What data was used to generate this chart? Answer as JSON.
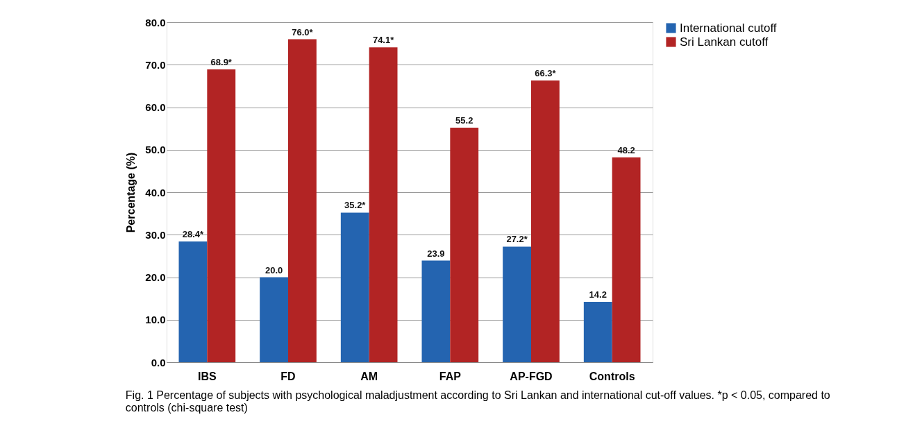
{
  "chart_data": {
    "type": "bar",
    "ylabel": "Percentage (%)",
    "categories": [
      "IBS",
      "FD",
      "AM",
      "FAP",
      "AP-FGD",
      "Controls"
    ],
    "series": [
      {
        "name": "International cutoff",
        "color": "#2464b0",
        "values": [
          28.4,
          20.0,
          35.2,
          23.9,
          27.2,
          14.2
        ],
        "value_labels": [
          "28.4*",
          "20.0",
          "35.2*",
          "23.9",
          "27.2*",
          "14.2"
        ]
      },
      {
        "name": "Sri Lankan cutoff",
        "color": "#b22424",
        "values": [
          68.9,
          76.0,
          74.1,
          55.2,
          66.3,
          48.2
        ],
        "value_labels": [
          "68.9*",
          "76.0*",
          "74.1*",
          "55.2",
          "66.3*",
          "48.2"
        ]
      }
    ],
    "ylim": [
      0,
      80
    ],
    "yticks": [
      {
        "value": 0,
        "label": "0.0"
      },
      {
        "value": 10,
        "label": "10.0"
      },
      {
        "value": 20,
        "label": "20.0"
      },
      {
        "value": 30,
        "label": "30.0"
      },
      {
        "value": 40,
        "label": "40.0"
      },
      {
        "value": 50,
        "label": "50.0"
      },
      {
        "value": 60,
        "label": "60.0"
      },
      {
        "value": 70,
        "label": "70.0"
      },
      {
        "value": 80,
        "label": "80.0"
      }
    ],
    "grid": "y",
    "legend": "right",
    "annotations": [
      "Fig. 1 Percentage of subjects with psychological maladjustment according to Sri Lankan and international cut-off values. *p < 0.05, compared to controls (chi-square test)"
    ]
  }
}
